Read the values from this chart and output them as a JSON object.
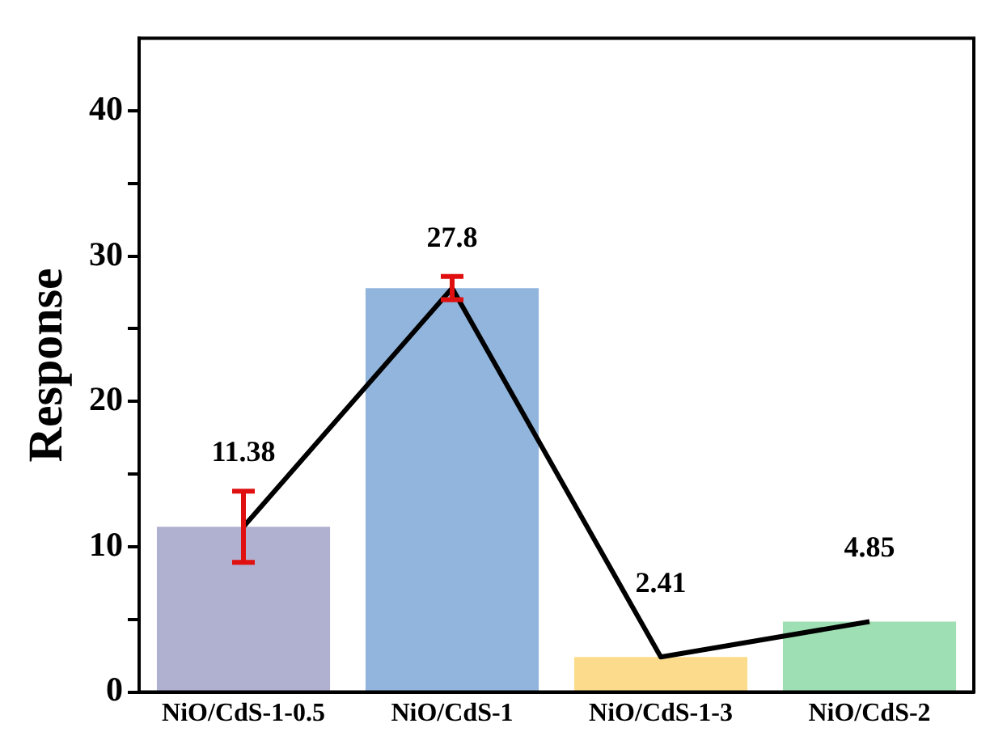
{
  "chart_data": {
    "type": "bar",
    "ylabel": "Response",
    "categories": [
      "NiO/CdS-1-0.5",
      "NiO/CdS-1",
      "NiO/CdS-1-3",
      "NiO/CdS-2"
    ],
    "series": [
      {
        "colors": [
          "#b0b0d0",
          "#91b5dc",
          "#fcdc8c",
          "#9ee0b4"
        ],
        "values": [
          11.38,
          27.8,
          2.41,
          4.85
        ],
        "value_labels": [
          "11.38",
          "27.8",
          "2.41",
          "4.85"
        ],
        "errors": [
          2.45,
          0.8,
          null,
          null
        ]
      },
      {
        "type": "line",
        "color": "#000000",
        "values": [
          11.38,
          27.8,
          2.41,
          4.85
        ]
      }
    ],
    "ylim": [
      0,
      45
    ],
    "yticks": [
      0,
      {
        "value": 5,
        "label": null
      },
      10,
      {
        "value": 15,
        "label": null
      },
      20,
      {
        "value": 25,
        "label": null
      },
      30,
      {
        "value": 35,
        "label": null
      },
      40
    ],
    "grid": false,
    "legend": false,
    "marker": "none",
    "line_style": "solid"
  }
}
